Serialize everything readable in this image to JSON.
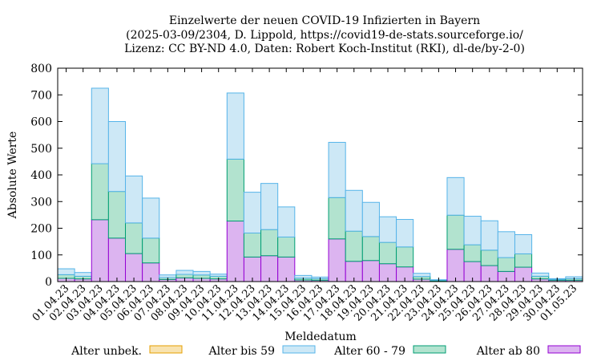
{
  "chart_data": {
    "type": "bar",
    "stacked": true,
    "title_lines": [
      "Einzelwerte der neuen COVID-19 Infizierten in Bayern",
      "(2025-03-09/2304, D. Lippold, https://covid19-de-stats.sourceforge.io/",
      "Lizenz: CC BY-ND 4.0, Daten: Robert Koch-Institut (RKI), dl-de/by-2-0)"
    ],
    "xlabel": "Meldedatum",
    "ylabel": "Absolute Werte",
    "ylim": [
      0,
      800
    ],
    "yticks": [
      0,
      100,
      200,
      300,
      400,
      500,
      600,
      700,
      800
    ],
    "grid": false,
    "legend_position": "bottom",
    "categories": [
      "01.04.23",
      "02.04.23",
      "03.04.23",
      "04.04.23",
      "05.04.23",
      "06.04.23",
      "07.04.23",
      "08.04.23",
      "09.04.23",
      "10.04.23",
      "11.04.23",
      "12.04.23",
      "13.04.23",
      "14.04.23",
      "15.04.23",
      "16.04.23",
      "17.04.23",
      "18.04.23",
      "19.04.23",
      "20.04.23",
      "21.04.23",
      "22.04.23",
      "23.04.23",
      "24.04.23",
      "25.04.23",
      "26.04.23",
      "27.04.23",
      "28.04.23",
      "29.04.23",
      "30.04.23",
      "01.05.23"
    ],
    "series": [
      {
        "name": "Alter ab 80",
        "fill": "#dcb4f0",
        "stroke": "#9400d3",
        "values": [
          12,
          10,
          232,
          163,
          105,
          70,
          8,
          14,
          12,
          10,
          227,
          92,
          97,
          92,
          6,
          5,
          160,
          76,
          79,
          67,
          55,
          9,
          3,
          121,
          75,
          60,
          38,
          54,
          10,
          5,
          5
        ]
      },
      {
        "name": "Alter 60 - 79",
        "fill": "#b2e3cf",
        "stroke": "#009e73",
        "values": [
          14,
          10,
          210,
          175,
          115,
          93,
          7,
          13,
          13,
          10,
          232,
          90,
          98,
          75,
          7,
          6,
          155,
          113,
          90,
          80,
          75,
          10,
          2,
          128,
          63,
          58,
          52,
          50,
          10,
          3,
          6
        ]
      },
      {
        "name": "Alter bis 59",
        "fill": "#cde8f6",
        "stroke": "#56b4e9",
        "values": [
          22,
          14,
          283,
          262,
          176,
          150,
          10,
          15,
          13,
          8,
          248,
          153,
          173,
          113,
          10,
          6,
          207,
          153,
          128,
          96,
          103,
          12,
          2,
          141,
          107,
          110,
          97,
          72,
          12,
          3,
          7
        ]
      },
      {
        "name": "Alter unbek.",
        "fill": "#f8e3b0",
        "stroke": "#e69f00",
        "values": [
          0,
          0,
          0,
          0,
          0,
          0,
          0,
          0,
          0,
          0,
          0,
          0,
          0,
          0,
          0,
          0,
          0,
          0,
          0,
          0,
          0,
          0,
          0,
          0,
          0,
          0,
          0,
          0,
          0,
          0,
          0
        ]
      }
    ]
  }
}
